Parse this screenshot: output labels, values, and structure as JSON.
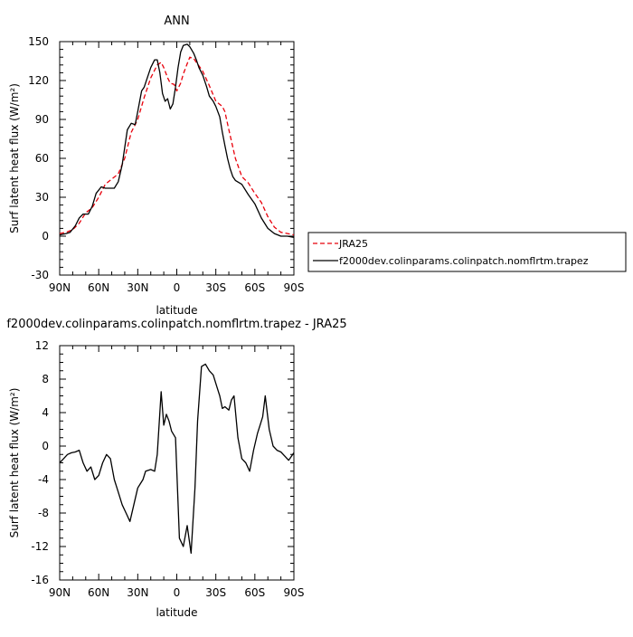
{
  "chart_data": [
    {
      "type": "line",
      "title": "ANN",
      "xlabel": "latitude",
      "ylabel": "Surf latent heat flux (W/m²)",
      "xlim": [
        -90,
        90
      ],
      "ylim": [
        -30,
        150
      ],
      "x_ticks": [
        -90,
        -60,
        -30,
        0,
        30,
        60,
        90
      ],
      "x_tick_labels": [
        "90N",
        "60N",
        "30N",
        "0",
        "30S",
        "60S",
        "90S"
      ],
      "y_ticks": [
        -30,
        0,
        30,
        60,
        90,
        120,
        150
      ],
      "y_tick_labels": [
        "-30",
        "0",
        "30",
        "60",
        "90",
        "120",
        "150"
      ],
      "grid": false,
      "legend_position": "right of plot",
      "series": [
        {
          "name": "JRA25",
          "color": "#e8000b",
          "dash": "dashed",
          "x": [
            -90,
            -85,
            -80,
            -75,
            -70,
            -65,
            -60,
            -55,
            -50,
            -45,
            -40,
            -35,
            -30,
            -25,
            -20,
            -15,
            -12,
            -10,
            -7,
            -5,
            -2,
            0,
            3,
            5,
            8,
            10,
            13,
            15,
            18,
            20,
            25,
            30,
            35,
            37,
            40,
            45,
            50,
            55,
            60,
            65,
            70,
            75,
            80,
            85,
            90
          ],
          "values": [
            2,
            3,
            5,
            10,
            18,
            22,
            30,
            40,
            44,
            48,
            60,
            80,
            90,
            107,
            122,
            132,
            134,
            130,
            122,
            118,
            117,
            112,
            118,
            125,
            133,
            138,
            137,
            134,
            130,
            127,
            116,
            104,
            100,
            96,
            82,
            60,
            46,
            41,
            33,
            26,
            15,
            7,
            3,
            2,
            1
          ]
        },
        {
          "name": "f2000dev.colinparams.colinpatch.nomflrtm.trapez",
          "color": "#000000",
          "dash": "solid",
          "x": [
            -90,
            -85,
            -82,
            -78,
            -75,
            -72,
            -68,
            -65,
            -62,
            -58,
            -55,
            -50,
            -48,
            -45,
            -42,
            -38,
            -35,
            -32,
            -30,
            -27,
            -25,
            -22,
            -20,
            -17,
            -15,
            -13,
            -11,
            -9,
            -7,
            -5,
            -3,
            -1,
            1,
            3,
            5,
            8,
            10,
            13,
            15,
            17,
            20,
            23,
            25,
            28,
            30,
            33,
            35,
            37,
            39,
            41,
            43,
            45,
            50,
            55,
            60,
            65,
            70,
            75,
            80,
            85,
            90
          ],
          "values": [
            1,
            2,
            3,
            8,
            14,
            17,
            17,
            23,
            33,
            38,
            37,
            37,
            37,
            42,
            55,
            82,
            87,
            86,
            96,
            112,
            115,
            124,
            130,
            136,
            136,
            126,
            110,
            104,
            106,
            98,
            102,
            115,
            130,
            142,
            147,
            148,
            146,
            141,
            136,
            130,
            124,
            115,
            108,
            104,
            100,
            92,
            80,
            70,
            60,
            52,
            46,
            43,
            40,
            32,
            25,
            14,
            6,
            2,
            0,
            0,
            -1
          ]
        }
      ]
    },
    {
      "type": "line",
      "title": "f2000dev.colinparams.colinpatch.nomflrtm.trapez - JRA25",
      "xlabel": "latitude",
      "ylabel": "Surf latent heat flux (W/m²)",
      "xlim": [
        -90,
        90
      ],
      "ylim": [
        -16,
        12
      ],
      "x_ticks": [
        -90,
        -60,
        -30,
        0,
        30,
        60,
        90
      ],
      "x_tick_labels": [
        "90N",
        "60N",
        "30N",
        "0",
        "30S",
        "60S",
        "90S"
      ],
      "y_ticks": [
        -16,
        -12,
        -8,
        -4,
        0,
        4,
        8,
        12
      ],
      "y_tick_labels": [
        "-16",
        "-12",
        "-8",
        "-4",
        "0",
        "4",
        "8",
        "12"
      ],
      "grid": false,
      "series": [
        {
          "color": "#000000",
          "dash": "solid",
          "x": [
            -90,
            -87,
            -84,
            -81,
            -78,
            -75,
            -72,
            -69,
            -66,
            -63,
            -60,
            -57,
            -54,
            -51,
            -48,
            -45,
            -42,
            -39,
            -36,
            -33,
            -30,
            -28,
            -26,
            -24,
            -20,
            -17,
            -15,
            -12,
            -10,
            -8,
            -6,
            -4,
            -1,
            2,
            5,
            8,
            11,
            14,
            16,
            19,
            22,
            25,
            28,
            31,
            33,
            35,
            37,
            40,
            42,
            44,
            47,
            50,
            53,
            56,
            59,
            62,
            64,
            66,
            68,
            71,
            74,
            77,
            80,
            83,
            86,
            90
          ],
          "values": [
            -2,
            -1.5,
            -1,
            -0.8,
            -0.7,
            -0.5,
            -2,
            -3,
            -2.5,
            -4,
            -3.5,
            -2,
            -1,
            -1.5,
            -4,
            -5.5,
            -7,
            -8,
            -9,
            -7,
            -5,
            -4.5,
            -4,
            -3,
            -2.8,
            -3,
            -1,
            6.5,
            2.5,
            3.8,
            3,
            1.8,
            1,
            -11,
            -12,
            -9.5,
            -12.8,
            -5,
            3,
            9.5,
            9.8,
            9,
            8.5,
            7,
            6,
            4.5,
            4.7,
            4.3,
            5.5,
            6,
            1,
            -1.5,
            -2,
            -3,
            -0.5,
            1.5,
            2.5,
            3.5,
            6,
            2,
            0,
            -0.5,
            -0.7,
            -1.2,
            -1.7,
            -0.8
          ]
        }
      ]
    }
  ]
}
